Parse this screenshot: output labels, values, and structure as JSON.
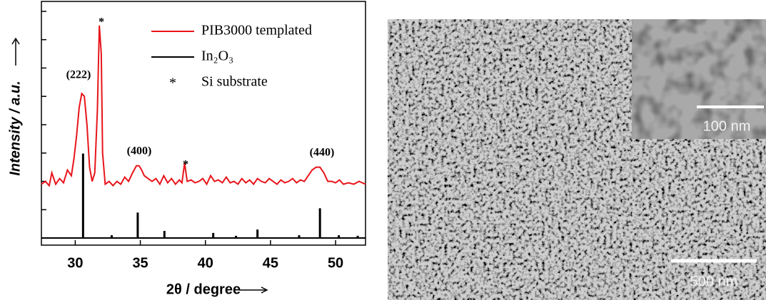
{
  "chart_data": {
    "type": "line",
    "xlabel": "2θ / degree",
    "ylabel": "Intensity / a.u.",
    "xlim": [
      27.4,
      52.3
    ],
    "xticks": [
      30,
      35,
      40,
      45,
      50
    ],
    "ylim": [
      -0.25,
      8.35
    ],
    "yticks": [
      0,
      1,
      2,
      3,
      4,
      5,
      6,
      7,
      8
    ],
    "series": [
      {
        "name": "PIB3000 templated",
        "color": "#e8151b",
        "x": [
          27.4,
          27.7,
          28.0,
          28.2,
          28.5,
          28.8,
          29.1,
          29.4,
          29.7,
          29.9,
          30.1,
          30.3,
          30.5,
          30.7,
          30.9,
          31.1,
          31.3,
          31.5,
          31.7,
          31.85,
          32.0,
          32.1,
          32.3,
          32.6,
          32.9,
          33.2,
          33.5,
          33.8,
          34.1,
          34.4,
          34.7,
          34.9,
          35.1,
          35.3,
          35.6,
          35.9,
          36.2,
          36.5,
          36.8,
          37.1,
          37.4,
          37.7,
          38.0,
          38.2,
          38.4,
          38.6,
          38.9,
          39.2,
          39.5,
          39.8,
          40.1,
          40.4,
          40.7,
          41.0,
          41.3,
          41.6,
          41.9,
          42.2,
          42.5,
          42.8,
          43.1,
          43.4,
          43.7,
          44.0,
          44.3,
          44.6,
          44.9,
          45.2,
          45.5,
          45.8,
          46.1,
          46.4,
          46.7,
          47.0,
          47.3,
          47.6,
          47.9,
          48.2,
          48.5,
          48.8,
          49.1,
          49.4,
          49.7,
          50.0,
          50.3,
          50.6,
          51.0,
          51.4,
          51.8,
          52.3
        ],
        "values": [
          1.9,
          2.0,
          1.85,
          2.3,
          1.9,
          2.1,
          1.95,
          2.4,
          2.2,
          2.8,
          3.6,
          4.6,
          5.1,
          5.0,
          4.0,
          2.5,
          2.0,
          2.3,
          4.5,
          7.5,
          6.5,
          3.0,
          1.9,
          2.0,
          1.85,
          2.0,
          1.9,
          2.15,
          2.0,
          2.3,
          2.55,
          2.55,
          2.4,
          2.2,
          2.1,
          2.0,
          2.1,
          1.9,
          2.2,
          1.95,
          2.1,
          1.9,
          2.05,
          1.95,
          2.65,
          2.0,
          2.05,
          1.95,
          2.0,
          2.1,
          1.9,
          2.2,
          2.0,
          2.05,
          1.95,
          2.15,
          1.95,
          2.0,
          1.9,
          2.1,
          1.95,
          2.05,
          1.9,
          2.1,
          2.0,
          1.95,
          2.1,
          2.0,
          1.9,
          2.05,
          1.95,
          2.0,
          2.1,
          1.95,
          2.05,
          2.0,
          2.2,
          2.4,
          2.5,
          2.5,
          2.3,
          2.0,
          2.0,
          1.95,
          2.05,
          1.9,
          1.95,
          1.9,
          2.0,
          1.9
        ]
      },
      {
        "name": "In₂O₃",
        "color": "#000000",
        "type": "stem",
        "x": [
          30.6,
          32.8,
          34.8,
          36.85,
          40.6,
          42.35,
          44.0,
          47.2,
          48.8,
          50.25,
          51.7
        ],
        "values": [
          2.98,
          0.1,
          0.9,
          0.25,
          0.18,
          0.08,
          0.3,
          0.1,
          1.05,
          0.1,
          0.08
        ]
      }
    ],
    "legend_notes": [
      {
        "symbol": "*",
        "label": "Si substrate"
      }
    ],
    "annotations": [
      "(222)",
      "*",
      "(400)",
      "*",
      "(440)"
    ]
  },
  "image": {
    "inset_scale_bar": "100 nm",
    "scale_bar": "500 nm"
  }
}
